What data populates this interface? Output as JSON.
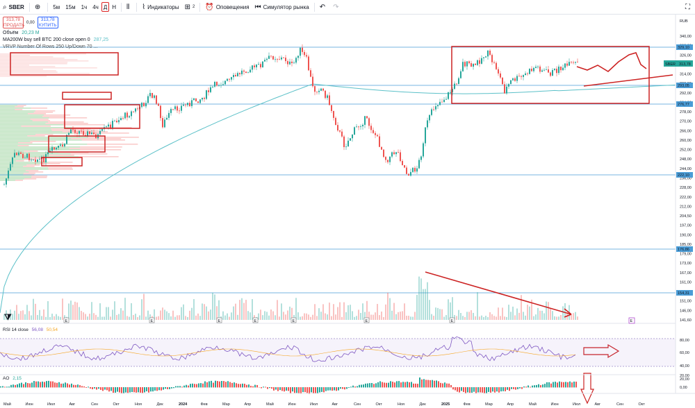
{
  "toolbar": {
    "symbol": "SBER",
    "intervals": [
      "5м",
      "15м",
      "1ч",
      "4ч",
      "Д",
      "Н"
    ],
    "active_interval": "Д",
    "indicators_label": "Индикаторы",
    "alerts_label": "Оповещения",
    "replay_label": "Симулятор рынка",
    "layouts_count": "2"
  },
  "legend": {
    "sell_price": "313,78",
    "sell_label": "ПРОДАТЬ",
    "spread": "0,00",
    "buy_price": "313,78",
    "buy_label": "КУПИТЬ",
    "volume_label": "Объём",
    "volume_value": "20,23 M",
    "ma_label": "MA200W buy sell BTC 200 close open 0",
    "ma_value": "287,25",
    "vrvp_label": "VRVP Number Of Rows 250 Up/Down 70 ...",
    "rsi_label": "RSI 14 close",
    "rsi_value1": "56,08",
    "rsi_value2": "50,54",
    "ao_label": "AO",
    "ao_value": "2,15"
  },
  "price_axis": {
    "currency": "RUB",
    "ticks": [
      "340,00",
      "332,00",
      "326,00",
      "320,00",
      "314,00",
      "300,00",
      "292,00",
      "284,00",
      "278,00",
      "270,00",
      "266,00",
      "260,00",
      "252,00",
      "248,00",
      "244,00",
      "236,00",
      "228,00",
      "222,00",
      "212,00",
      "204,50",
      "197,00",
      "190,00",
      "185,00",
      "179,00",
      "173,00",
      "167,00",
      "161,00",
      "156,00",
      "151,00",
      "146,00",
      "141,60"
    ],
    "levels": [
      {
        "label": "329,10",
        "color": "#4a9cd6"
      },
      {
        "label": "293,05",
        "color": "#4a9cd6"
      },
      {
        "label": "276,77",
        "color": "#4a9cd6"
      },
      {
        "label": "222,10",
        "color": "#4a9cd6"
      },
      {
        "label": "176,86",
        "color": "#4a9cd6"
      },
      {
        "label": "154,31",
        "color": "#4a9cd6"
      }
    ],
    "last_price": "313,78",
    "last_symbol": "SBER"
  },
  "rsi_axis": {
    "ticks": [
      "80,00",
      "60,00",
      "40,00",
      "20,00"
    ]
  },
  "ao_axis": {
    "ticks": [
      "20,00",
      "0,00"
    ]
  },
  "time_axis": {
    "labels": [
      "Май",
      "Июн",
      "Июл",
      "Авг",
      "Сен",
      "Окт",
      "Ноя",
      "Дек",
      "2024",
      "Фев",
      "Мар",
      "Апр",
      "Май",
      "Июн",
      "Июл",
      "Авг",
      "Сен",
      "Окт",
      "Ноя",
      "Дек",
      "2025",
      "Фев",
      "Мар",
      "Апр",
      "Май",
      "Июн",
      "Июл",
      "Авг",
      "Сен",
      "Окт"
    ]
  },
  "earnings_marker": "E",
  "colors": {
    "up": "#26a69a",
    "down": "#ef5350",
    "ma": "#5bc0c8",
    "annotation": "#cc2222",
    "level": "#4a9cd6",
    "rsi": "#7e57c2"
  }
}
